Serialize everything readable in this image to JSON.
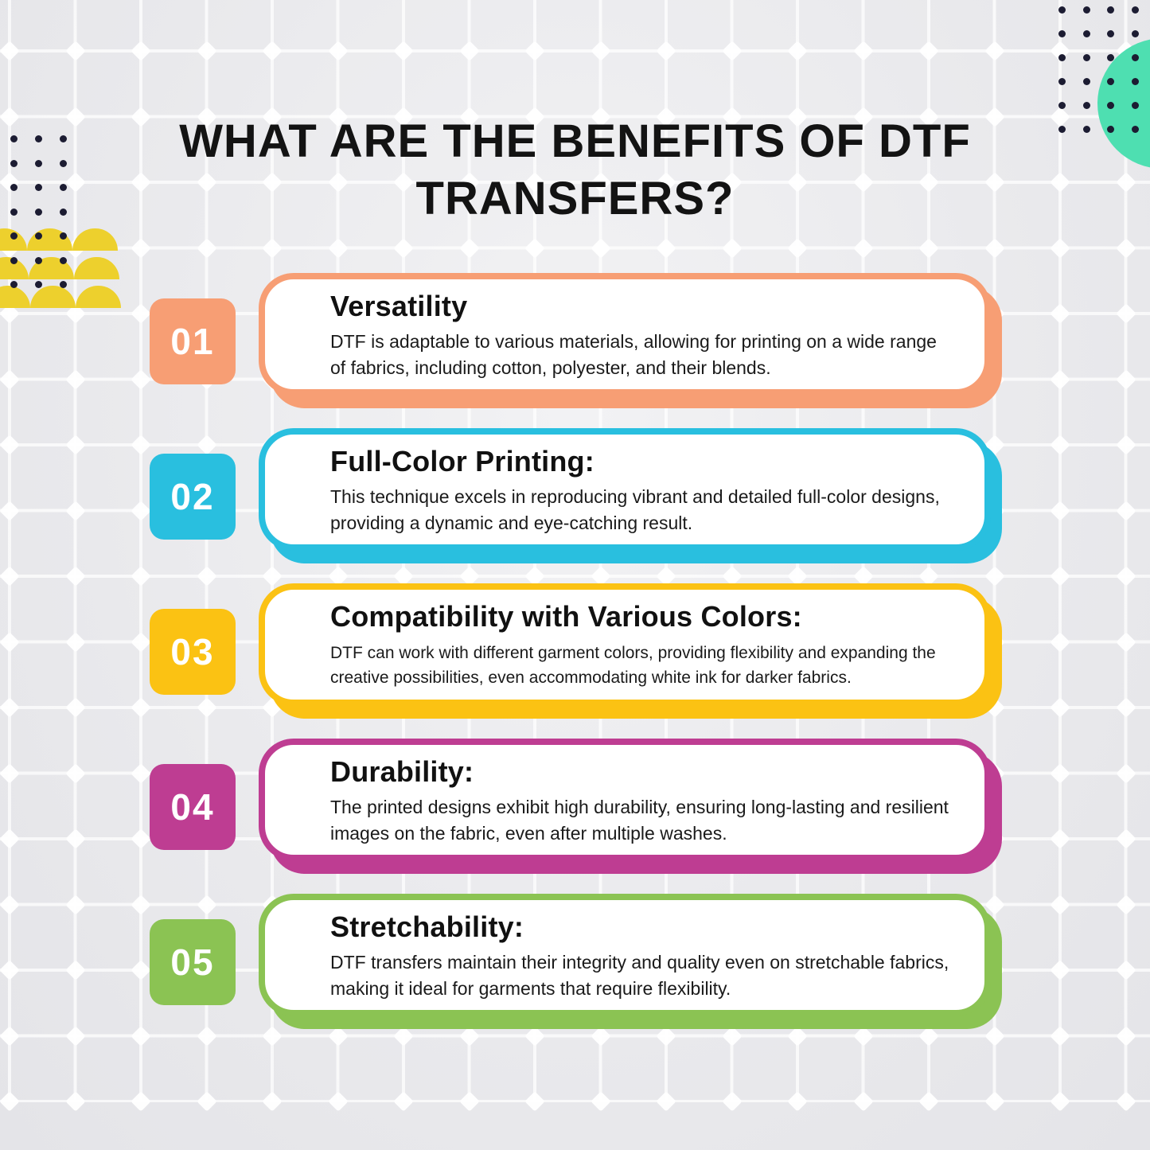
{
  "header": {
    "title_line1": "WHAT ARE THE BENEFITS OF DTF",
    "title_line2": "TRANSFERS?"
  },
  "cards": [
    {
      "number": "01",
      "title": "Versatility",
      "body": "DTF is adaptable to various materials, allowing for printing on a wide range of fabrics, including cotton, polyester, and their blends.",
      "color": "#F79E74"
    },
    {
      "number": "02",
      "title": "Full-Color Printing:",
      "body": "This technique excels in reproducing vibrant and detailed full-color designs, providing a dynamic and eye-catching result.",
      "color": "#29BFDF"
    },
    {
      "number": "03",
      "title": "Compatibility with Various Colors:",
      "body": "DTF can work with different garment colors, providing flexibility and expanding the creative possibilities, even accommodating white ink for darker fabrics.",
      "color": "#FBC213"
    },
    {
      "number": "04",
      "title": "Durability:",
      "body": "The printed designs exhibit high durability, ensuring long-lasting and resilient images on the fabric, even after multiple washes.",
      "color": "#BE3D92"
    },
    {
      "number": "05",
      "title": "Stretchability:",
      "body": "DTF transfers maintain their integrity and quality even on stretchable fabrics, making it ideal for garments that require flexibility.",
      "color": "#8BC353"
    }
  ],
  "decor": {
    "teal_circle_color": "#4EDFB1",
    "dome_color": "#EDD02D",
    "dot_color": "#1C1C32",
    "grid_line_color": "#FFFFFF",
    "background_color": "#EAEAEC",
    "text_color": "#131313"
  }
}
